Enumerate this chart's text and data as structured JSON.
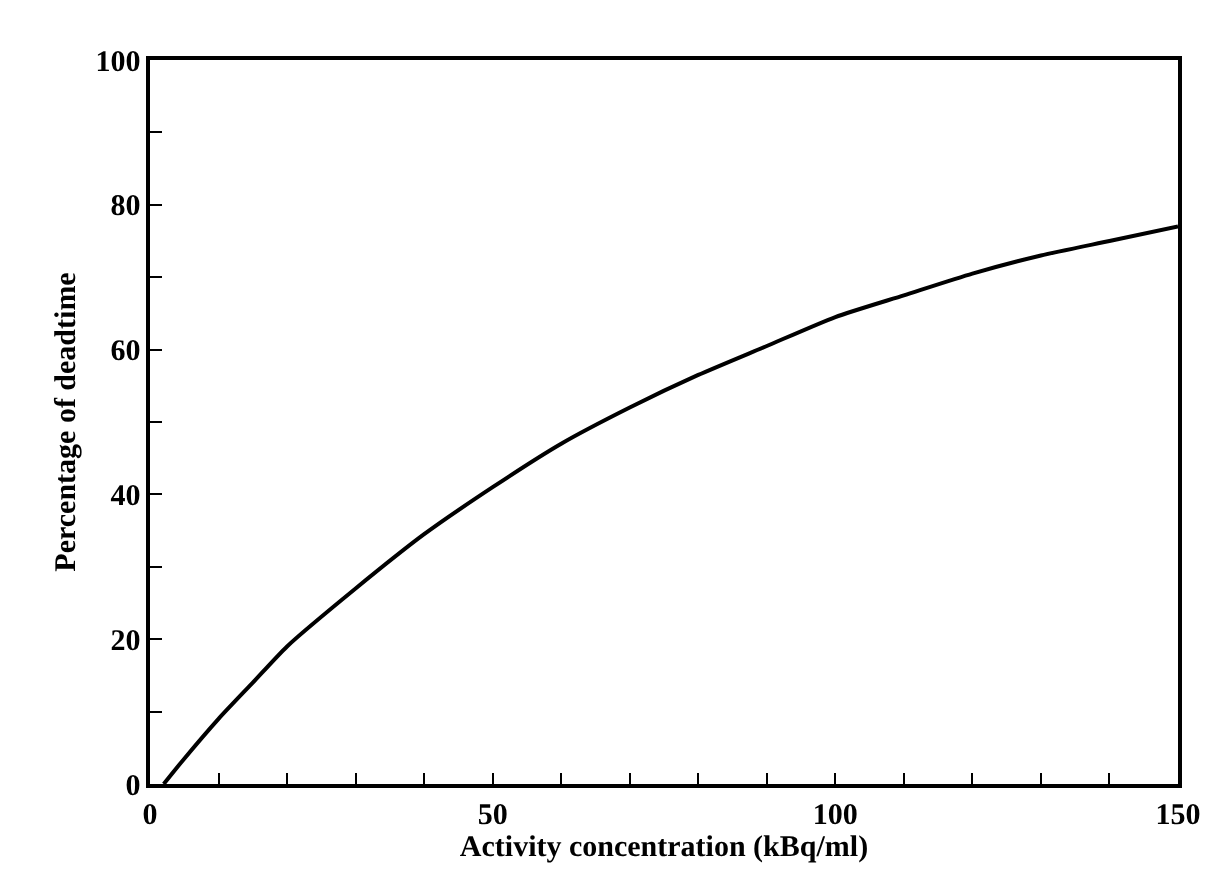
{
  "chart_data": {
    "type": "line",
    "xlabel": "Activity concentration (kBq/ml)",
    "ylabel": "Percentage of deadtime",
    "x": [
      2,
      5,
      10,
      15,
      20,
      30,
      40,
      50,
      60,
      70,
      80,
      90,
      100,
      110,
      120,
      130,
      140,
      150
    ],
    "series": [
      {
        "color": "#000000",
        "values": [
          0,
          3.5,
          9,
          14,
          19,
          27,
          34.5,
          41,
          47,
          52,
          56.5,
          60.5,
          64.5,
          67.5,
          70.5,
          73,
          75,
          77
        ]
      }
    ],
    "xlim": [
      0,
      150
    ],
    "ylim": [
      0,
      100
    ],
    "xticks": [
      0,
      {
        "value": 10,
        "label": null
      },
      {
        "value": 20,
        "label": null
      },
      {
        "value": 30,
        "label": null
      },
      {
        "value": 40,
        "label": null
      },
      50,
      {
        "value": 60,
        "label": null
      },
      {
        "value": 70,
        "label": null
      },
      {
        "value": 80,
        "label": null
      },
      {
        "value": 90,
        "label": null
      },
      100,
      {
        "value": 110,
        "label": null
      },
      {
        "value": 120,
        "label": null
      },
      {
        "value": 130,
        "label": null
      },
      {
        "value": 140,
        "label": null
      },
      150
    ],
    "yticks": [
      0,
      {
        "value": 10,
        "label": null
      },
      20,
      {
        "value": 30,
        "label": null
      },
      40,
      {
        "value": 50,
        "label": null
      },
      60,
      {
        "value": 70,
        "label": null
      },
      80,
      {
        "value": 90,
        "label": null
      },
      100
    ],
    "legend": false,
    "marker": "none",
    "line_style": "solid"
  }
}
